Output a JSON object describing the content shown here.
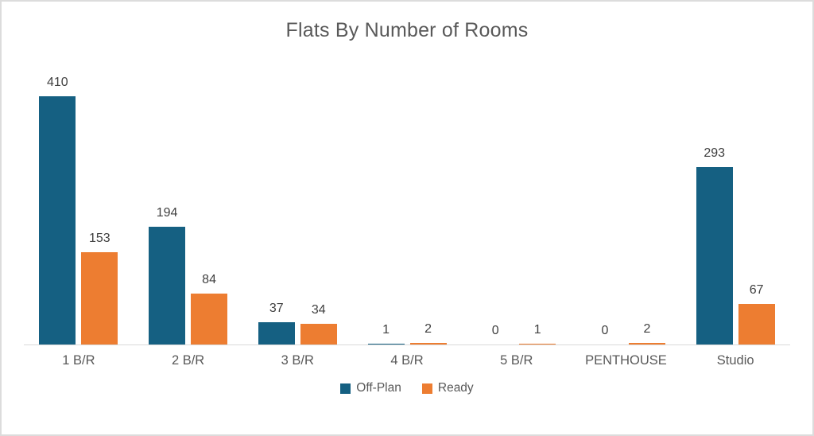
{
  "chart_data": {
    "type": "bar",
    "title": "Flats By Number of Rooms",
    "categories": [
      "1 B/R",
      "2 B/R",
      "3 B/R",
      "4 B/R",
      "5 B/R",
      "PENTHOUSE",
      "Studio"
    ],
    "series": [
      {
        "name": "Off-Plan",
        "color": "#156082",
        "values": [
          410,
          194,
          37,
          1,
          0,
          0,
          293
        ]
      },
      {
        "name": "Ready",
        "color": "#ED7D31",
        "values": [
          153,
          84,
          34,
          2,
          1,
          2,
          67
        ]
      }
    ],
    "data_labels": true,
    "grid": false,
    "legend_position": "bottom",
    "xlabel": "",
    "ylabel": "",
    "ylim": [
      0,
      460
    ],
    "colors": {
      "axis_line": "#D9D9D9",
      "title_text": "#595959",
      "value_label_text": "#404040",
      "category_label_text": "#595959",
      "frame_border": "#DCDCDC"
    }
  }
}
